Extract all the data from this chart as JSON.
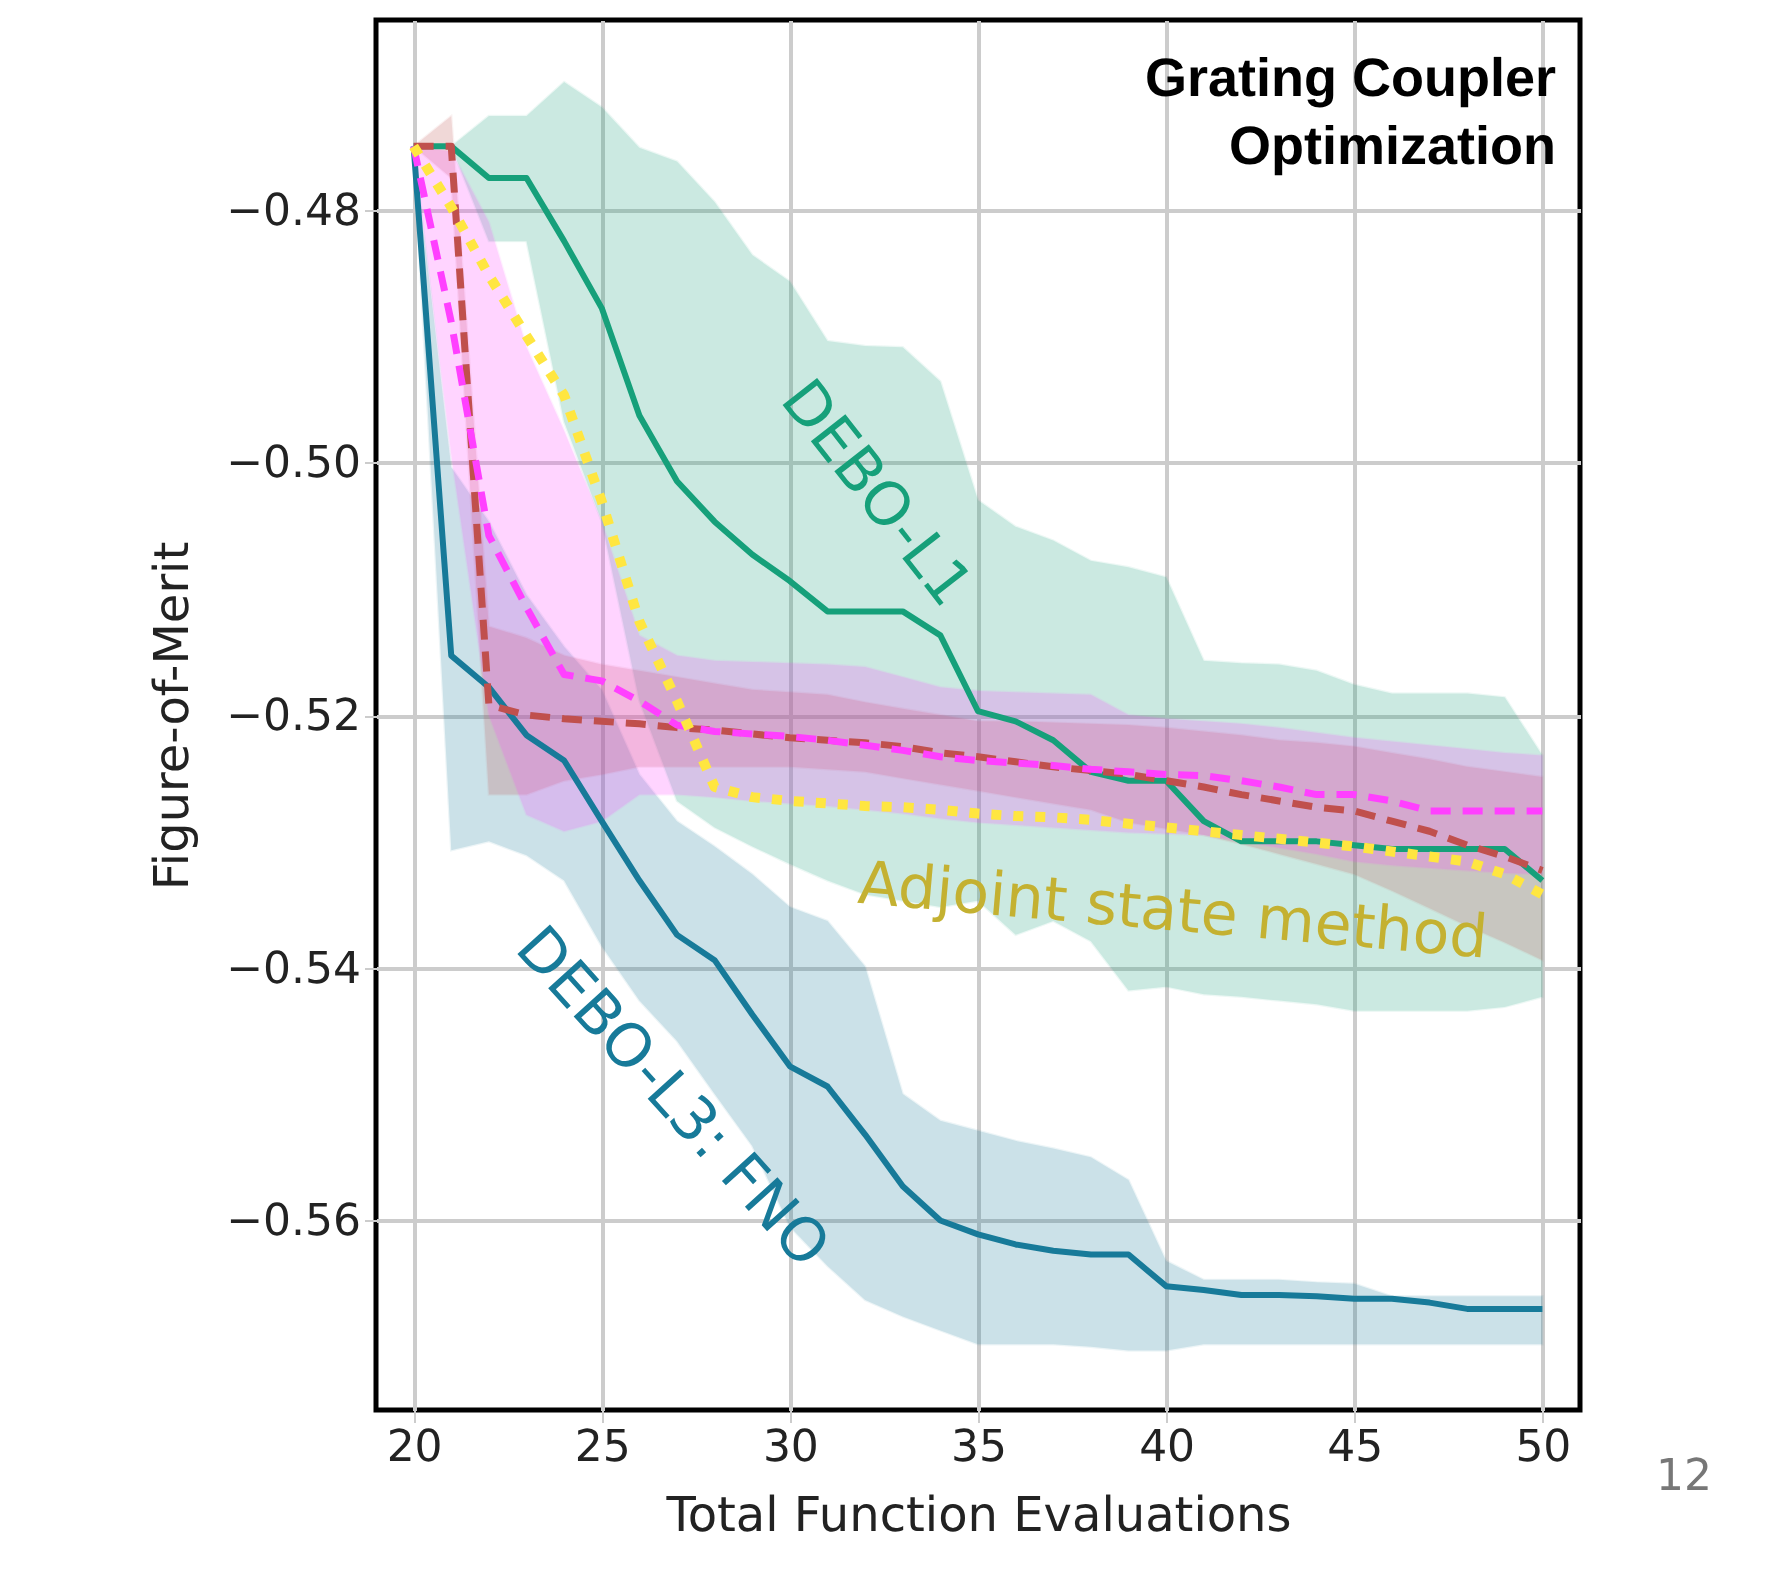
{
  "chart_data": {
    "type": "line",
    "title": "Grating Coupler\nOptimization",
    "xlabel": "Total Function Evaluations",
    "ylabel": "Figure-of-Merit",
    "x": [
      20,
      21,
      22,
      23,
      24,
      25,
      26,
      27,
      28,
      29,
      30,
      31,
      32,
      33,
      34,
      35,
      36,
      37,
      38,
      39,
      40,
      41,
      42,
      43,
      44,
      45,
      46,
      47,
      48,
      49,
      50
    ],
    "xlim": [
      19,
      51
    ],
    "xticks": [
      20,
      25,
      30,
      35,
      40,
      45,
      50
    ],
    "ylim": [
      -0.575,
      -0.465
    ],
    "yticks": [
      {
        "value": -0.48,
        "label": "−0.48"
      },
      {
        "value": -0.5,
        "label": "−0.50"
      },
      {
        "value": -0.52,
        "label": "−0.52"
      },
      {
        "value": -0.54,
        "label": "−0.54"
      },
      {
        "value": -0.56,
        "label": "−0.56"
      }
    ],
    "grid": true,
    "series": [
      {
        "name": "DEBO-L1",
        "color": "#16a07a",
        "line_style": "solid",
        "values": [
          -0.475,
          -0.475,
          -0.4775,
          -0.4775,
          -0.4825,
          -0.4878,
          -0.4963,
          -0.5015,
          -0.5047,
          -0.5073,
          -0.5094,
          -0.5118,
          -0.5118,
          -0.5118,
          -0.5137,
          -0.5197,
          -0.5205,
          -0.522,
          -0.5245,
          -0.5252,
          -0.5252,
          -0.5284,
          -0.53,
          -0.53,
          -0.53,
          -0.5303,
          -0.5306,
          -0.5306,
          -0.5306,
          -0.5306,
          -0.5331
        ],
        "upper": [
          -0.475,
          -0.475,
          -0.4726,
          -0.4726,
          -0.4699,
          -0.4719,
          -0.4751,
          -0.4762,
          -0.4794,
          -0.4836,
          -0.4857,
          -0.4904,
          -0.4908,
          -0.4909,
          -0.4936,
          -0.503,
          -0.5051,
          -0.5062,
          -0.5078,
          -0.5083,
          -0.5091,
          -0.5157,
          -0.5159,
          -0.516,
          -0.5165,
          -0.5176,
          -0.5183,
          -0.5183,
          -0.5183,
          -0.5186,
          -0.5232
        ],
        "lower": [
          -0.475,
          -0.475,
          -0.4825,
          -0.4825,
          -0.4968,
          -0.5047,
          -0.5189,
          -0.5268,
          -0.5289,
          -0.5304,
          -0.5318,
          -0.5331,
          -0.5342,
          -0.5347,
          -0.5352,
          -0.5347,
          -0.5374,
          -0.5363,
          -0.5379,
          -0.5418,
          -0.5415,
          -0.5421,
          -0.5423,
          -0.5426,
          -0.5429,
          -0.5434,
          -0.5434,
          -0.5434,
          -0.5434,
          -0.5431,
          -0.5423
        ]
      },
      {
        "name": "DEBO-L3: FNO",
        "color": "#177a99",
        "line_style": "solid",
        "values": [
          -0.475,
          -0.5153,
          -0.5178,
          -0.5216,
          -0.5236,
          -0.5284,
          -0.5331,
          -0.5374,
          -0.5394,
          -0.5437,
          -0.5478,
          -0.5494,
          -0.5532,
          -0.5573,
          -0.56,
          -0.5611,
          -0.5619,
          -0.5624,
          -0.5627,
          -0.5627,
          -0.5652,
          -0.5655,
          -0.5659,
          -0.5659,
          -0.566,
          -0.5662,
          -0.5662,
          -0.5665,
          -0.567,
          -0.567,
          -0.567
        ],
        "upper": [
          -0.475,
          -0.5004,
          -0.5047,
          -0.5105,
          -0.5146,
          -0.518,
          -0.5247,
          -0.5284,
          -0.5304,
          -0.5326,
          -0.5352,
          -0.5363,
          -0.5399,
          -0.55,
          -0.5521,
          -0.5529,
          -0.5537,
          -0.5543,
          -0.555,
          -0.5568,
          -0.5632,
          -0.5647,
          -0.5647,
          -0.5647,
          -0.5649,
          -0.565,
          -0.566,
          -0.566,
          -0.566,
          -0.566,
          -0.566
        ],
        "lower": [
          -0.475,
          -0.5307,
          -0.53,
          -0.5311,
          -0.5331,
          -0.5383,
          -0.5426,
          -0.5458,
          -0.55,
          -0.5541,
          -0.5605,
          -0.5636,
          -0.5663,
          -0.5676,
          -0.5687,
          -0.5698,
          -0.5698,
          -0.5698,
          -0.57,
          -0.5703,
          -0.5703,
          -0.5698,
          -0.5698,
          -0.5698,
          -0.5698,
          -0.5698,
          -0.5698,
          -0.5698,
          -0.5698,
          -0.5698,
          -0.5698
        ]
      },
      {
        "color": "#c0504d",
        "line_style": "dashed",
        "values": [
          -0.475,
          -0.475,
          -0.5192,
          -0.52,
          -0.5203,
          -0.5205,
          -0.5207,
          -0.521,
          -0.5212,
          -0.5215,
          -0.5218,
          -0.522,
          -0.5222,
          -0.5225,
          -0.523,
          -0.5233,
          -0.5237,
          -0.5241,
          -0.5244,
          -0.5247,
          -0.5252,
          -0.5257,
          -0.5263,
          -0.5268,
          -0.5273,
          -0.5276,
          -0.5284,
          -0.5292,
          -0.5303,
          -0.5312,
          -0.5323
        ],
        "upper": [
          -0.475,
          -0.4726,
          -0.513,
          -0.5139,
          -0.5153,
          -0.516,
          -0.5165,
          -0.517,
          -0.5175,
          -0.518,
          -0.5182,
          -0.5184,
          -0.519,
          -0.5195,
          -0.52,
          -0.5205,
          -0.5205,
          -0.5206,
          -0.5207,
          -0.5208,
          -0.521,
          -0.5213,
          -0.5216,
          -0.522,
          -0.5222,
          -0.5225,
          -0.523,
          -0.5235,
          -0.5241,
          -0.5245,
          -0.5249
        ],
        "lower": [
          -0.475,
          -0.4775,
          -0.5263,
          -0.5263,
          -0.5252,
          -0.5247,
          -0.5241,
          -0.5241,
          -0.5241,
          -0.5241,
          -0.5241,
          -0.5243,
          -0.5245,
          -0.525,
          -0.5255,
          -0.526,
          -0.5265,
          -0.527,
          -0.5275,
          -0.5285,
          -0.529,
          -0.5295,
          -0.5302,
          -0.531,
          -0.5318,
          -0.5326,
          -0.5339,
          -0.5353,
          -0.5367,
          -0.538,
          -0.5394
        ]
      },
      {
        "color": "#ff40ff",
        "line_style": "dashed",
        "values": [
          -0.475,
          -0.4889,
          -0.5058,
          -0.5115,
          -0.5168,
          -0.5173,
          -0.5189,
          -0.5208,
          -0.5213,
          -0.5215,
          -0.5217,
          -0.522,
          -0.5224,
          -0.5228,
          -0.5233,
          -0.5236,
          -0.5238,
          -0.524,
          -0.5243,
          -0.5245,
          -0.5247,
          -0.5248,
          -0.5252,
          -0.5257,
          -0.5263,
          -0.5263,
          -0.5268,
          -0.5276,
          -0.5276,
          -0.5276,
          -0.5276
        ],
        "upper": [
          -0.475,
          -0.4754,
          -0.481,
          -0.4909,
          -0.4975,
          -0.5047,
          -0.5137,
          -0.5153,
          -0.5157,
          -0.5158,
          -0.5159,
          -0.516,
          -0.5162,
          -0.517,
          -0.5178,
          -0.5181,
          -0.5182,
          -0.5183,
          -0.5184,
          -0.52,
          -0.5203,
          -0.5205,
          -0.5207,
          -0.521,
          -0.5214,
          -0.5218,
          -0.5221,
          -0.5224,
          -0.5227,
          -0.523,
          -0.5232
        ],
        "lower": [
          -0.475,
          -0.4994,
          -0.52,
          -0.5279,
          -0.5292,
          -0.5284,
          -0.5263,
          -0.5263,
          -0.5265,
          -0.5268,
          -0.527,
          -0.5272,
          -0.5275,
          -0.5278,
          -0.5282,
          -0.5285,
          -0.5287,
          -0.5289,
          -0.5291,
          -0.5293,
          -0.5294,
          -0.5295,
          -0.53,
          -0.5305,
          -0.531,
          -0.5316,
          -0.5319,
          -0.5321,
          -0.5323,
          -0.5325,
          -0.5326
        ]
      },
      {
        "name": "Adjoint state method",
        "color": "#ffe640",
        "line_style": "dotted",
        "values": [
          -0.475,
          -0.4798,
          -0.4852,
          -0.49,
          -0.4947,
          -0.5031,
          -0.5126,
          -0.5189,
          -0.5257,
          -0.5265,
          -0.5268,
          -0.527,
          -0.5272,
          -0.5273,
          -0.5275,
          -0.5278,
          -0.528,
          -0.5281,
          -0.5283,
          -0.5286,
          -0.5289,
          -0.5292,
          -0.5295,
          -0.5298,
          -0.5301,
          -0.5304,
          -0.5308,
          -0.5312,
          -0.5316,
          -0.5326,
          -0.5342
        ]
      }
    ],
    "annotations": [
      "12"
    ]
  }
}
